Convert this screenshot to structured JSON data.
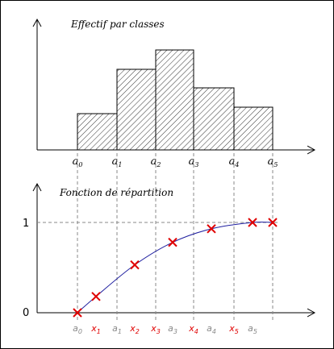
{
  "chart_data": [
    {
      "type": "bar",
      "title": "Effectif par classes",
      "class_bounds": [
        "a0",
        "a1",
        "a2",
        "a3",
        "a4",
        "a5"
      ],
      "bound_labels": [
        {
          "base": "a",
          "sub": "0"
        },
        {
          "base": "a",
          "sub": "1"
        },
        {
          "base": "a",
          "sub": "2"
        },
        {
          "base": "a",
          "sub": "3"
        },
        {
          "base": "a",
          "sub": "4"
        },
        {
          "base": "a",
          "sub": "5"
        }
      ],
      "values": [
        45,
        100,
        124,
        77,
        53
      ],
      "hatch": true
    },
    {
      "type": "line",
      "title": "Fonction de répartition",
      "y_ticks": [
        "0",
        "1"
      ],
      "ylim": [
        0,
        1
      ],
      "x_labels": [
        {
          "base": "a",
          "sub": "0",
          "color": "#888888"
        },
        {
          "base": "x",
          "sub": "1",
          "color": "#e00000"
        },
        {
          "base": "a",
          "sub": "1",
          "color": "#888888"
        },
        {
          "base": "x",
          "sub": "2",
          "color": "#e00000"
        },
        {
          "base": "x",
          "sub": "3",
          "color": "#e00000"
        },
        {
          "base": "a",
          "sub": "3",
          "color": "#888888"
        },
        {
          "base": "x",
          "sub": "4",
          "color": "#e00000"
        },
        {
          "base": "a",
          "sub": "4",
          "color": "#888888"
        },
        {
          "base": "x",
          "sub": "5",
          "color": "#e00000"
        },
        {
          "base": "a",
          "sub": "5",
          "color": "#888888"
        }
      ],
      "points": [
        {
          "x": "a0",
          "y": 0.0
        },
        {
          "x": "x1",
          "y": 0.18
        },
        {
          "x": "x2",
          "y": 0.53
        },
        {
          "x": "x3",
          "y": 0.78
        },
        {
          "x": "x4",
          "y": 0.93
        },
        {
          "x": "x5",
          "y": 1.0
        },
        {
          "x": "a5",
          "y": 1.0
        }
      ],
      "colors": {
        "curve": "#2020a0",
        "marker": "#e00000",
        "grid": "#888888"
      }
    }
  ]
}
